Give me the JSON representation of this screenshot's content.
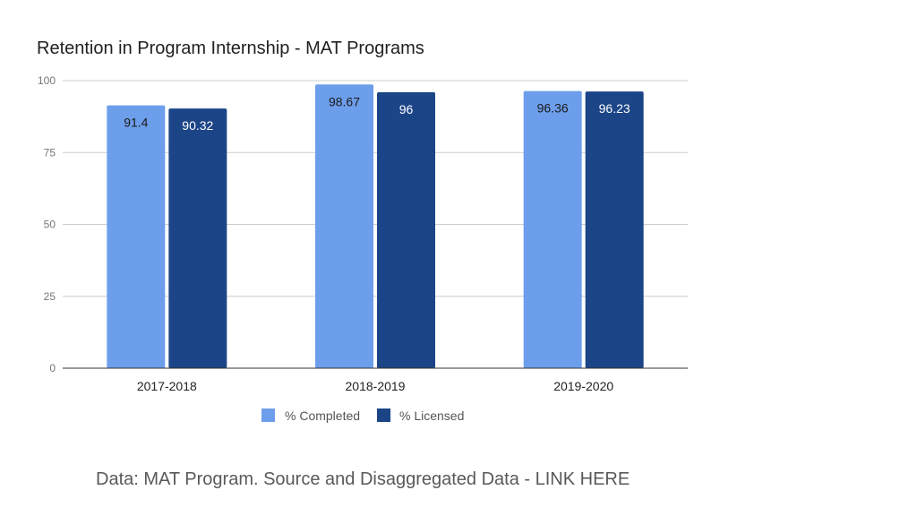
{
  "chart_data": {
    "type": "bar",
    "title": "Retention in Program Internship - MAT Programs",
    "xlabel": "",
    "ylabel": "",
    "categories": [
      "2017-2018",
      "2018-2019",
      "2019-2020"
    ],
    "series": [
      {
        "name": "% Completed",
        "values": [
          91.4,
          98.67,
          96.36
        ],
        "labels": [
          "91.4",
          "98.67",
          "96.36"
        ],
        "color": "#6d9eeb",
        "label_color": "#1a1a1a"
      },
      {
        "name": "% Licensed",
        "values": [
          90.32,
          96,
          96.23
        ],
        "labels": [
          "90.32",
          "96",
          "96.23"
        ],
        "color": "#1c4587",
        "label_color": "#ffffff"
      }
    ],
    "ylim": [
      0,
      100
    ],
    "yticks": [
      0,
      25,
      50,
      75,
      100
    ],
    "grid": true,
    "legend_position": "bottom"
  },
  "footer": {
    "note": "Data: MAT Program. Source and Disaggregated Data - LINK HERE"
  }
}
